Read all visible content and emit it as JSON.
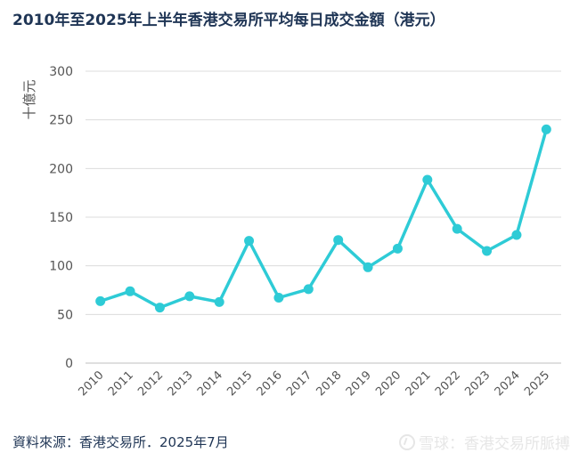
{
  "chart_data": {
    "type": "line",
    "title": "2010年至2025年上半年香港交易所平均每日成交金額（港元）",
    "ylabel": "十億元",
    "xlabel": "",
    "categories": [
      "2010",
      "2011",
      "2012",
      "2013",
      "2014",
      "2015",
      "2016",
      "2017",
      "2018",
      "2019",
      "2020",
      "2021",
      "2022",
      "2023",
      "2024",
      "2025"
    ],
    "values": [
      63.7,
      73.8,
      57.1,
      68.7,
      62.8,
      125.6,
      67.2,
      76.0,
      126.5,
      98.5,
      117.7,
      188.4,
      138.0,
      115.2,
      131.7,
      240.2
    ],
    "ylim": [
      0,
      300
    ],
    "yticks": [
      0,
      50,
      100,
      150,
      200,
      250,
      300
    ],
    "grid": true,
    "color": "#2ecbd6"
  },
  "source": "資料來源：香港交易所．2025年7月",
  "watermark": "雪球：香港交易所脈搏"
}
